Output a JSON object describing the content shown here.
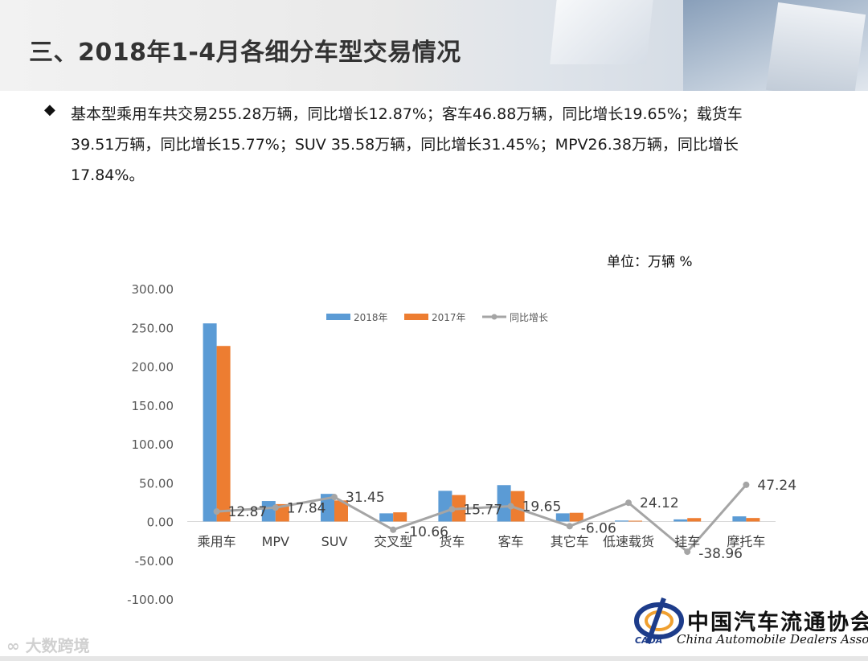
{
  "title": "三、2018年1-4月各细分车型交易情况",
  "paragraph": {
    "bullet": "◆",
    "lines": [
      "基本型乘用车共交易255.28万辆，同比增长12.87%；客车46.88万辆，同比增长19.65%；载货车",
      "39.51万辆，同比增长15.77%；SUV 35.58万辆，同比增长31.45%；MPV26.38万辆，同比增长",
      "17.84%。"
    ]
  },
  "unit_label": "单位：万辆  %",
  "chart_data": {
    "type": "bar",
    "categories": [
      "乘用车",
      "MPV",
      "SUV",
      "交叉型",
      "货车",
      "客车",
      "其它车",
      "低速载货",
      "挂车",
      "摩托车"
    ],
    "series": [
      {
        "name": "2018年",
        "type": "bar",
        "color": "#5b9bd5",
        "values": [
          255.28,
          26.38,
          35.58,
          10.5,
          39.51,
          46.88,
          10.5,
          1.2,
          2.7,
          6.6
        ]
      },
      {
        "name": "2017年",
        "type": "bar",
        "color": "#ed7d31",
        "values": [
          226.2,
          22.4,
          27.1,
          11.8,
          34.1,
          39.2,
          11.2,
          1.0,
          4.4,
          4.5
        ]
      },
      {
        "name": "同比增长",
        "type": "line",
        "color": "#a5a5a5",
        "values": [
          12.87,
          17.84,
          31.45,
          -10.66,
          15.77,
          19.65,
          -6.06,
          24.12,
          -38.96,
          47.24
        ],
        "labels": [
          "12.87",
          "17.84",
          "31.45",
          "-10.66",
          "15.77",
          "19.65",
          "-6.06",
          "24.12",
          "-38.96",
          "47.24"
        ]
      }
    ],
    "y_ticks": [
      "300.00",
      "250.00",
      "200.00",
      "150.00",
      "100.00",
      "50.00",
      "0.00",
      "-50.00",
      "-100.00"
    ],
    "ylim": [
      -100,
      300
    ],
    "legend_position": "top",
    "grid": false
  },
  "watermark": "大数跨境",
  "logo": {
    "name_cn": "中国汽车流通协会",
    "name_en": "China Automobile Dealers Association",
    "abbr": "CADA"
  }
}
